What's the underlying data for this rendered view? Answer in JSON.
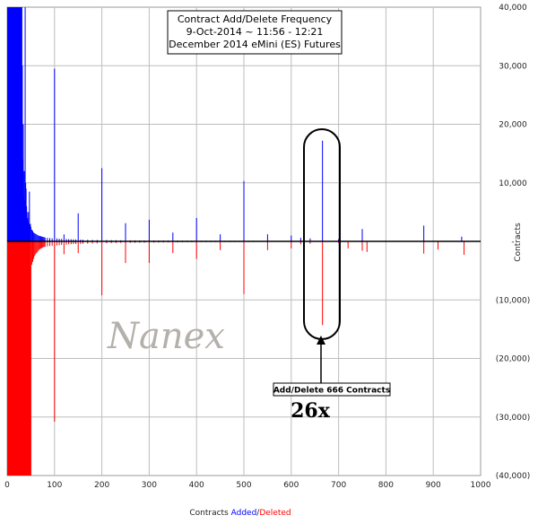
{
  "chart_data": {
    "type": "bar",
    "title": [
      "Contract Add/Delete Frequency",
      "9-Oct-2014 ~ 11:56 - 12:21",
      "December 2014 eMini (ES) Futures"
    ],
    "xlabel_parts": [
      "Contracts ",
      "Added",
      "/",
      "Deleted"
    ],
    "ylabel": "Contracts",
    "xlim": [
      0,
      1000
    ],
    "ylim": [
      -40000,
      40000
    ],
    "x_ticks": [
      "0",
      "100",
      "200",
      "300",
      "400",
      "500",
      "600",
      "700",
      "800",
      "900",
      "1000"
    ],
    "y_ticks": [
      "40,000",
      "30,000",
      "20,000",
      "10,000",
      "-",
      "(10,000)",
      "(20,000)",
      "(30,000)",
      "(40,000)"
    ],
    "grid": true,
    "series": [
      {
        "name": "Added",
        "color": "#0000ff",
        "points": [
          [
            1,
            40000
          ],
          [
            2,
            40000
          ],
          [
            3,
            40000
          ],
          [
            4,
            40000
          ],
          [
            5,
            40000
          ],
          [
            6,
            40000
          ],
          [
            7,
            40000
          ],
          [
            8,
            40000
          ],
          [
            9,
            40000
          ],
          [
            10,
            40000
          ],
          [
            11,
            40000
          ],
          [
            12,
            40000
          ],
          [
            13,
            40000
          ],
          [
            14,
            40000
          ],
          [
            15,
            40000
          ],
          [
            16,
            40000
          ],
          [
            17,
            40000
          ],
          [
            18,
            40000
          ],
          [
            19,
            40000
          ],
          [
            20,
            40000
          ],
          [
            21,
            40000
          ],
          [
            22,
            40000
          ],
          [
            23,
            40000
          ],
          [
            24,
            40000
          ],
          [
            25,
            40000
          ],
          [
            26,
            40000
          ],
          [
            27,
            40000
          ],
          [
            28,
            40000
          ],
          [
            29,
            40000
          ],
          [
            30,
            40000
          ],
          [
            31,
            40000
          ],
          [
            32,
            30000
          ],
          [
            33,
            14000
          ],
          [
            34,
            20000
          ],
          [
            35,
            8000
          ],
          [
            36,
            12000
          ],
          [
            37,
            7000
          ],
          [
            38,
            40000
          ],
          [
            39,
            10000
          ],
          [
            40,
            9000
          ],
          [
            41,
            6000
          ],
          [
            42,
            5000
          ],
          [
            43,
            4000
          ],
          [
            44,
            3500
          ],
          [
            45,
            5000
          ],
          [
            46,
            3000
          ],
          [
            47,
            8500
          ],
          [
            48,
            2800
          ],
          [
            49,
            3000
          ],
          [
            50,
            2500
          ],
          [
            52,
            2000
          ],
          [
            54,
            1800
          ],
          [
            56,
            1500
          ],
          [
            58,
            1400
          ],
          [
            60,
            1300
          ],
          [
            62,
            1200
          ],
          [
            64,
            1100
          ],
          [
            66,
            1000
          ],
          [
            68,
            950
          ],
          [
            70,
            900
          ],
          [
            72,
            850
          ],
          [
            74,
            800
          ],
          [
            76,
            750
          ],
          [
            78,
            700
          ],
          [
            80,
            650
          ],
          [
            85,
            600
          ],
          [
            90,
            550
          ],
          [
            95,
            500
          ],
          [
            100,
            29500
          ],
          [
            105,
            500
          ],
          [
            110,
            450
          ],
          [
            115,
            420
          ],
          [
            120,
            1200
          ],
          [
            125,
            400
          ],
          [
            130,
            380
          ],
          [
            135,
            360
          ],
          [
            140,
            340
          ],
          [
            145,
            320
          ],
          [
            150,
            4800
          ],
          [
            155,
            300
          ],
          [
            160,
            280
          ],
          [
            170,
            260
          ],
          [
            180,
            240
          ],
          [
            190,
            230
          ],
          [
            200,
            12500
          ],
          [
            210,
            220
          ],
          [
            220,
            210
          ],
          [
            230,
            200
          ],
          [
            240,
            190
          ],
          [
            250,
            3100
          ],
          [
            260,
            180
          ],
          [
            270,
            170
          ],
          [
            280,
            160
          ],
          [
            290,
            150
          ],
          [
            300,
            3700
          ],
          [
            310,
            150
          ],
          [
            320,
            140
          ],
          [
            330,
            130
          ],
          [
            340,
            120
          ],
          [
            350,
            1500
          ],
          [
            360,
            120
          ],
          [
            370,
            110
          ],
          [
            380,
            100
          ],
          [
            390,
            100
          ],
          [
            400,
            4000
          ],
          [
            410,
            100
          ],
          [
            420,
            100
          ],
          [
            430,
            90
          ],
          [
            440,
            90
          ],
          [
            450,
            1200
          ],
          [
            460,
            90
          ],
          [
            470,
            90
          ],
          [
            480,
            80
          ],
          [
            490,
            80
          ],
          [
            500,
            10300
          ],
          [
            510,
            80
          ],
          [
            520,
            70
          ],
          [
            530,
            70
          ],
          [
            540,
            70
          ],
          [
            550,
            1200
          ],
          [
            560,
            60
          ],
          [
            570,
            60
          ],
          [
            580,
            60
          ],
          [
            590,
            60
          ],
          [
            600,
            1000
          ],
          [
            620,
            600
          ],
          [
            640,
            500
          ],
          [
            666,
            17200
          ],
          [
            700,
            400
          ],
          [
            750,
            2100
          ],
          [
            880,
            2700
          ],
          [
            960,
            800
          ]
        ]
      },
      {
        "name": "Deleted",
        "color": "#ff0000",
        "points": [
          [
            1,
            -40000
          ],
          [
            2,
            -40000
          ],
          [
            3,
            -40000
          ],
          [
            4,
            -40000
          ],
          [
            5,
            -40000
          ],
          [
            6,
            -40000
          ],
          [
            7,
            -40000
          ],
          [
            8,
            -40000
          ],
          [
            9,
            -40000
          ],
          [
            10,
            -40000
          ],
          [
            11,
            -40000
          ],
          [
            12,
            -40000
          ],
          [
            13,
            -40000
          ],
          [
            14,
            -40000
          ],
          [
            15,
            -40000
          ],
          [
            16,
            -40000
          ],
          [
            17,
            -40000
          ],
          [
            18,
            -40000
          ],
          [
            19,
            -40000
          ],
          [
            20,
            -40000
          ],
          [
            21,
            -40000
          ],
          [
            22,
            -40000
          ],
          [
            23,
            -40000
          ],
          [
            24,
            -40000
          ],
          [
            25,
            -40000
          ],
          [
            26,
            -40000
          ],
          [
            27,
            -40000
          ],
          [
            28,
            -40000
          ],
          [
            29,
            -40000
          ],
          [
            30,
            -40000
          ],
          [
            31,
            -40000
          ],
          [
            32,
            -40000
          ],
          [
            33,
            -40000
          ],
          [
            34,
            -40000
          ],
          [
            35,
            -40000
          ],
          [
            36,
            -40000
          ],
          [
            37,
            -40000
          ],
          [
            38,
            -40000
          ],
          [
            39,
            -40000
          ],
          [
            40,
            -40000
          ],
          [
            41,
            -40000
          ],
          [
            42,
            -40000
          ],
          [
            43,
            -40000
          ],
          [
            44,
            -40000
          ],
          [
            45,
            -40000
          ],
          [
            46,
            -40000
          ],
          [
            47,
            -40000
          ],
          [
            48,
            -40000
          ],
          [
            49,
            -40000
          ],
          [
            50,
            -40000
          ],
          [
            52,
            -4000
          ],
          [
            54,
            -3500
          ],
          [
            56,
            -3000
          ],
          [
            58,
            -2500
          ],
          [
            60,
            -2200
          ],
          [
            62,
            -2000
          ],
          [
            64,
            -1800
          ],
          [
            66,
            -1600
          ],
          [
            68,
            -1400
          ],
          [
            70,
            -1300
          ],
          [
            72,
            -1200
          ],
          [
            74,
            -1100
          ],
          [
            76,
            -1000
          ],
          [
            78,
            -950
          ],
          [
            80,
            -900
          ],
          [
            85,
            -850
          ],
          [
            90,
            -800
          ],
          [
            95,
            -750
          ],
          [
            100,
            -30800
          ],
          [
            105,
            -700
          ],
          [
            110,
            -650
          ],
          [
            115,
            -600
          ],
          [
            120,
            -2200
          ],
          [
            125,
            -550
          ],
          [
            130,
            -500
          ],
          [
            135,
            -480
          ],
          [
            140,
            -460
          ],
          [
            145,
            -440
          ],
          [
            150,
            -2000
          ],
          [
            155,
            -420
          ],
          [
            160,
            -400
          ],
          [
            170,
            -380
          ],
          [
            180,
            -360
          ],
          [
            190,
            -340
          ],
          [
            200,
            -9200
          ],
          [
            210,
            -320
          ],
          [
            220,
            -300
          ],
          [
            230,
            -280
          ],
          [
            240,
            -260
          ],
          [
            250,
            -3700
          ],
          [
            260,
            -250
          ],
          [
            270,
            -240
          ],
          [
            280,
            -230
          ],
          [
            290,
            -220
          ],
          [
            300,
            -3700
          ],
          [
            310,
            -210
          ],
          [
            320,
            -200
          ],
          [
            330,
            -190
          ],
          [
            340,
            -180
          ],
          [
            350,
            -2000
          ],
          [
            360,
            -170
          ],
          [
            370,
            -160
          ],
          [
            380,
            -150
          ],
          [
            390,
            -150
          ],
          [
            400,
            -3000
          ],
          [
            410,
            -140
          ],
          [
            420,
            -140
          ],
          [
            430,
            -130
          ],
          [
            440,
            -130
          ],
          [
            450,
            -1500
          ],
          [
            460,
            -120
          ],
          [
            470,
            -120
          ],
          [
            480,
            -110
          ],
          [
            490,
            -110
          ],
          [
            500,
            -9000
          ],
          [
            510,
            -100
          ],
          [
            520,
            -100
          ],
          [
            530,
            -100
          ],
          [
            540,
            -90
          ],
          [
            550,
            -1500
          ],
          [
            560,
            -90
          ],
          [
            570,
            -90
          ],
          [
            580,
            -80
          ],
          [
            590,
            -80
          ],
          [
            600,
            -1200
          ],
          [
            620,
            -500
          ],
          [
            640,
            -400
          ],
          [
            666,
            -14300
          ],
          [
            700,
            -300
          ],
          [
            720,
            -1200
          ],
          [
            750,
            -1600
          ],
          [
            760,
            -1800
          ],
          [
            880,
            -2100
          ],
          [
            910,
            -1400
          ],
          [
            965,
            -2300
          ]
        ]
      }
    ],
    "annotations": {
      "watermark": "Nanex",
      "callout": "Add/Delete 666 Contracts",
      "multiplier": "26x"
    }
  },
  "colors": {
    "added": "#0000ff",
    "deleted": "#ff0000",
    "grid": "#bdbdbd",
    "zero_line": "#000000"
  }
}
